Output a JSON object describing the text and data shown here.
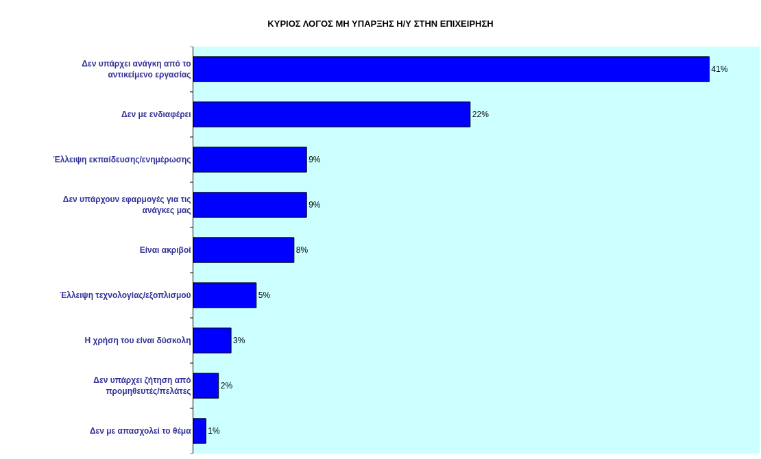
{
  "chart_data": {
    "type": "bar",
    "orientation": "horizontal",
    "title": "ΚΥΡΙΟΣ ΛΟΓΟΣ ΜΗ ΥΠΑΡΞΗΣ Η/Υ ΣΤΗΝ ΕΠΙΧΕΙΡΗΣΗ",
    "categories": [
      "Δεν υπάρχει ανάγκη από το αντικείμενο εργασίας",
      "Δεν με ενδιαφέρει",
      "Έλλειψη εκπαίδευσης/ενημέρωσης",
      "Δεν υπάρχουν εφαρμογές για τις ανάγκες μας",
      "Είναι ακριβοί",
      "Έλλειψη τεχνολογίας/εξοπλισμού",
      "Η χρήση του είναι δύσκολη",
      "Δεν υπάρχει ζήτηση από προμηθευτές/πελάτες",
      "Δεν με απασχολεί το θέμα"
    ],
    "values": [
      41,
      22,
      9,
      9,
      8,
      5,
      3,
      2,
      1
    ],
    "value_labels": [
      "41%",
      "22%",
      "9%",
      "9%",
      "8%",
      "5%",
      "3%",
      "2%",
      "1%"
    ],
    "color": "#0000ff",
    "xlim": [
      0,
      45
    ],
    "tick_labels": "y"
  }
}
